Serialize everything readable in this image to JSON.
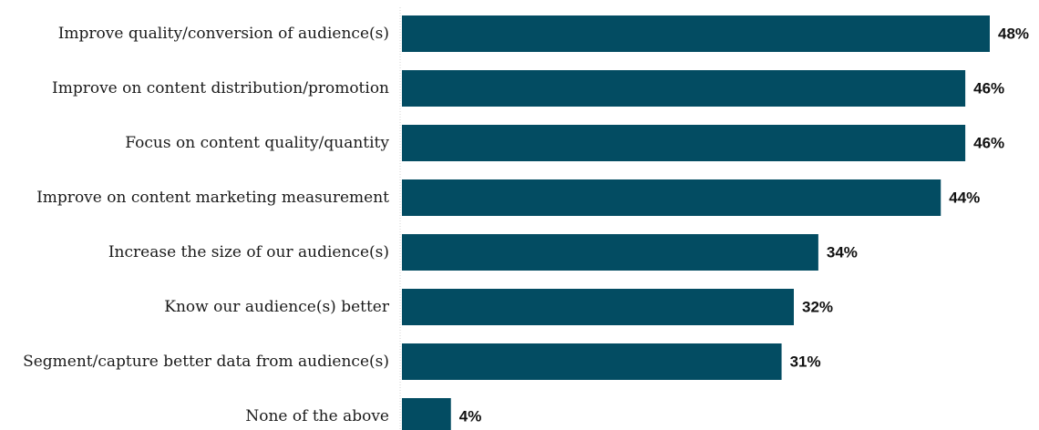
{
  "chart_data": {
    "type": "bar",
    "orientation": "horizontal",
    "categories": [
      "Improve quality/conversion of audience(s)",
      "Improve on content distribution/promotion",
      "Focus on content quality/quantity",
      "Improve on content marketing measurement",
      "Increase the size of our audience(s)",
      "Know our audience(s) better",
      "Segment/capture better data from audience(s)",
      "None of the above"
    ],
    "values": [
      48,
      46,
      46,
      44,
      34,
      32,
      31,
      4
    ],
    "value_labels": [
      "48%",
      "46%",
      "46%",
      "44%",
      "34%",
      "32%",
      "31%",
      "4%"
    ],
    "unit": "%",
    "xlim": [
      0,
      48
    ],
    "grid": false,
    "legend": "none",
    "title": "",
    "xlabel": "",
    "ylabel": "",
    "colors": {
      "bar": "#034c62",
      "label_text": "#1a1a1a",
      "value_text": "#111111"
    }
  }
}
